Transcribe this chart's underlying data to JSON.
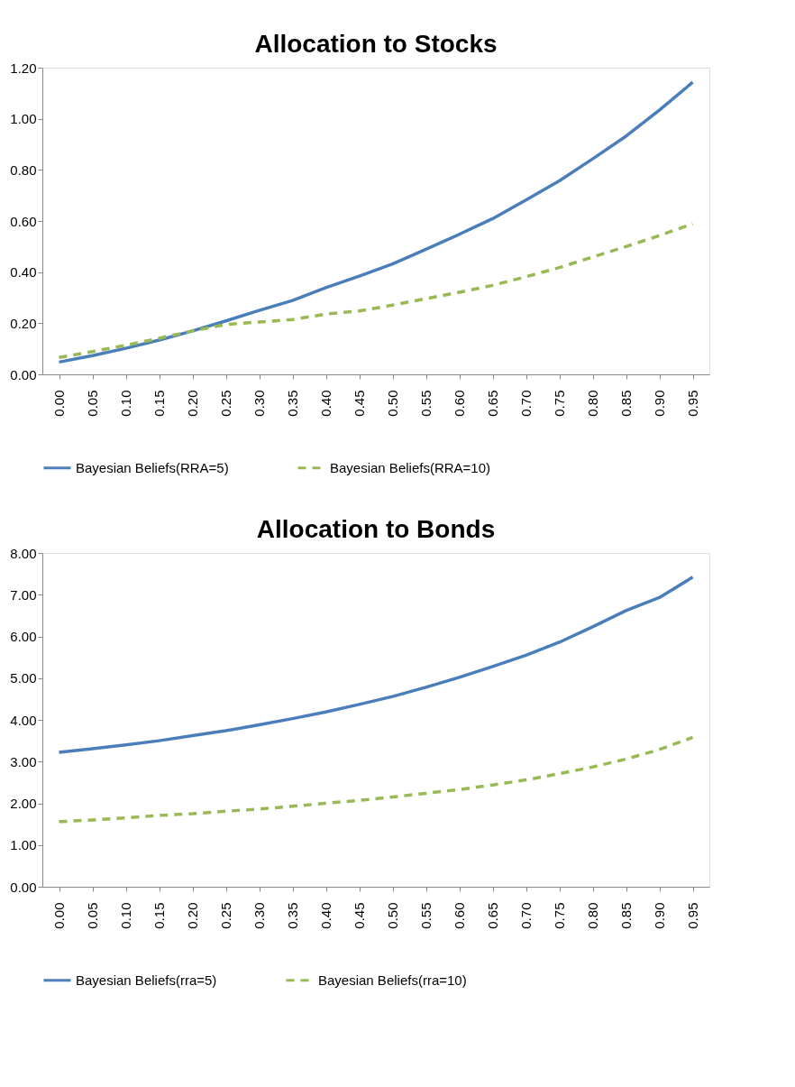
{
  "chart_data": [
    {
      "type": "line",
      "title": "Allocation to Stocks",
      "legend": "bottom",
      "categories": [
        "0.00",
        "0.05",
        "0.10",
        "0.15",
        "0.20",
        "0.25",
        "0.30",
        "0.35",
        "0.40",
        "0.45",
        "0.50",
        "0.55",
        "0.60",
        "0.65",
        "0.70",
        "0.75",
        "0.80",
        "0.85",
        "0.90",
        "0.95"
      ],
      "ylim": [
        0,
        1.2
      ],
      "yticks": [
        {
          "value": 0,
          "label": "0.00"
        },
        {
          "value": 0.2,
          "label": "0.20"
        },
        {
          "value": 0.4,
          "label": "0.40"
        },
        {
          "value": 0.6,
          "label": "0.60"
        },
        {
          "value": 0.8,
          "label": "0.80"
        },
        {
          "value": 1.0,
          "label": "1.00"
        },
        {
          "value": 1.2,
          "label": "1.20"
        }
      ],
      "series": [
        {
          "name": "Bayesian Beliefs(RRA=5)",
          "color": "#4a7ebb",
          "line_style": "solid",
          "values": [
            0.048,
            0.073,
            0.102,
            0.134,
            0.17,
            0.209,
            0.25,
            0.289,
            0.339,
            0.384,
            0.432,
            0.489,
            0.548,
            0.609,
            0.682,
            0.757,
            0.843,
            0.932,
            1.034,
            1.143
          ]
        },
        {
          "name": "Bayesian Beliefs(RRA=10)",
          "color": "#98b954",
          "line_style": "dashed",
          "values": [
            0.066,
            0.089,
            0.114,
            0.141,
            0.17,
            0.195,
            0.205,
            0.214,
            0.236,
            0.248,
            0.271,
            0.296,
            0.321,
            0.348,
            0.382,
            0.418,
            0.459,
            0.5,
            0.543,
            0.589
          ]
        }
      ]
    },
    {
      "type": "line",
      "title": "Allocation to Bonds",
      "legend": "bottom",
      "categories": [
        "0.00",
        "0.05",
        "0.10",
        "0.15",
        "0.20",
        "0.25",
        "0.30",
        "0.35",
        "0.40",
        "0.45",
        "0.50",
        "0.55",
        "0.60",
        "0.65",
        "0.70",
        "0.75",
        "0.80",
        "0.85",
        "0.90",
        "0.95"
      ],
      "ylim": [
        0,
        8
      ],
      "yticks": [
        {
          "value": 0,
          "label": "0.00"
        },
        {
          "value": 1,
          "label": "1.00"
        },
        {
          "value": 2,
          "label": "2.00"
        },
        {
          "value": 3,
          "label": "3.00"
        },
        {
          "value": 4,
          "label": "4.00"
        },
        {
          "value": 5,
          "label": "5.00"
        },
        {
          "value": 6,
          "label": "6.00"
        },
        {
          "value": 7,
          "label": "7.00"
        },
        {
          "value": 8,
          "label": "8.00"
        }
      ],
      "series": [
        {
          "name": "Bayesian Beliefs(rra=5)",
          "color": "#4a7ebb",
          "line_style": "solid",
          "values": [
            3.22,
            3.31,
            3.4,
            3.5,
            3.62,
            3.74,
            3.88,
            4.03,
            4.19,
            4.37,
            4.56,
            4.78,
            5.02,
            5.28,
            5.55,
            5.86,
            6.23,
            6.62,
            6.93,
            7.42
          ]
        },
        {
          "name": "Bayesian Beliefs(rra=10)",
          "color": "#98b954",
          "line_style": "dashed",
          "values": [
            1.56,
            1.6,
            1.65,
            1.71,
            1.75,
            1.81,
            1.86,
            1.93,
            2.0,
            2.07,
            2.15,
            2.24,
            2.33,
            2.44,
            2.56,
            2.71,
            2.87,
            3.06,
            3.29,
            3.58
          ]
        }
      ]
    }
  ]
}
